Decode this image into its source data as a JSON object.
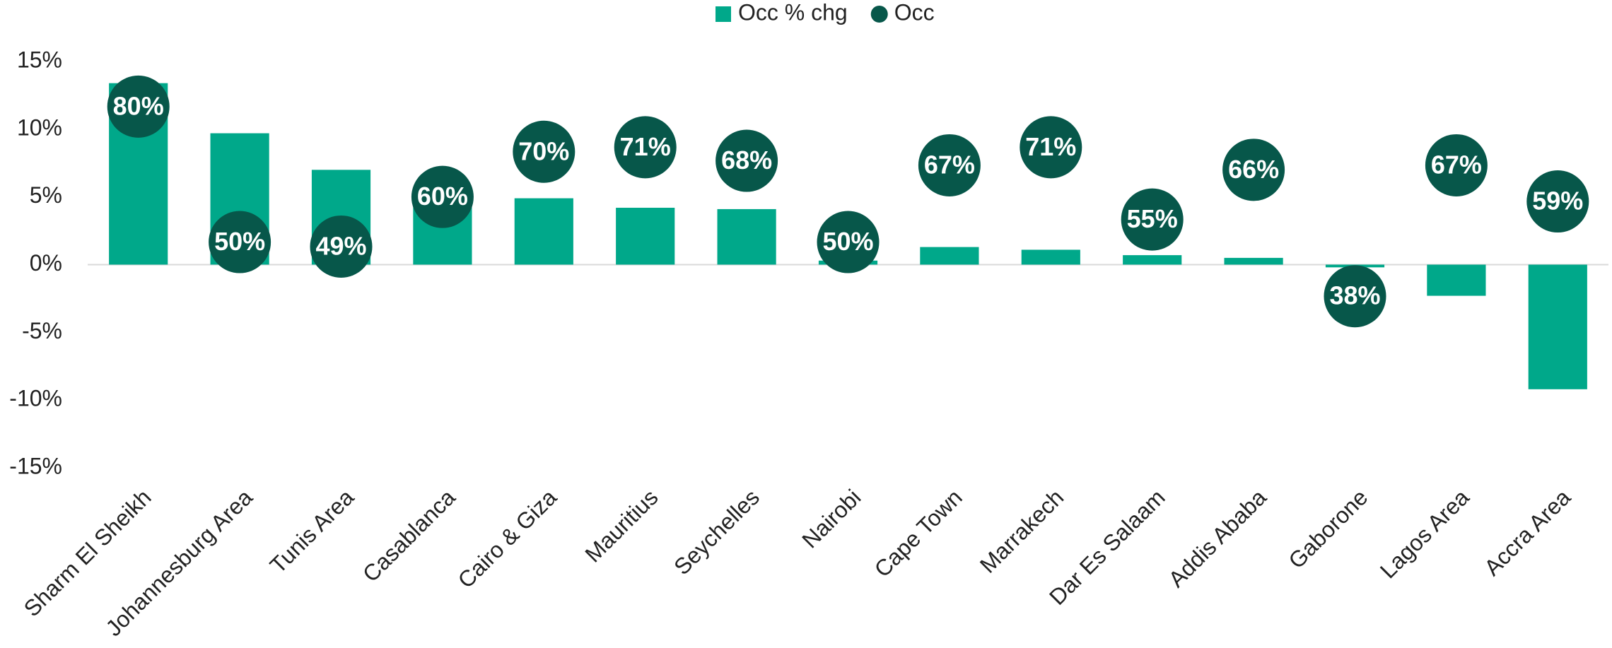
{
  "chart_data": {
    "type": "bar",
    "categories": [
      "Sharm El Sheikh",
      "Johannesburg Area",
      "Tunis Area",
      "Casablanca",
      "Cairo & Giza",
      "Mauritius",
      "Seychelles",
      "Nairobi",
      "Cape Town",
      "Marrakech",
      "Dar Es Salaam",
      "Addis Ababa",
      "Gaborone",
      "Lagos Area",
      "Accra Area"
    ],
    "series": [
      {
        "name": "Occ % chg",
        "type": "bar",
        "color": "#00a88a",
        "values": [
          13.4,
          9.7,
          7.0,
          5.0,
          4.9,
          4.2,
          4.1,
          0.3,
          1.3,
          1.1,
          0.7,
          0.5,
          -0.2,
          -2.3,
          -9.2
        ]
      },
      {
        "name": "Occ",
        "type": "scatter",
        "axis": "y2",
        "color": "#07574a",
        "values": [
          80,
          50,
          49,
          60,
          70,
          71,
          68,
          50,
          67,
          71,
          55,
          66,
          38,
          67,
          59
        ],
        "value_labels": [
          "80%",
          "50%",
          "49%",
          "60%",
          "70%",
          "71%",
          "68%",
          "50%",
          "67%",
          "71%",
          "55%",
          "66%",
          "38%",
          "67%",
          "59%"
        ]
      }
    ],
    "ylim": [
      -15,
      15
    ],
    "yticks": [
      {
        "value": 15,
        "label": "15%"
      },
      {
        "value": 10,
        "label": "10%"
      },
      {
        "value": 5,
        "label": "5%"
      },
      {
        "value": 0,
        "label": "0%"
      },
      {
        "value": -5,
        "label": "-5%"
      },
      {
        "value": -10,
        "label": "-10%"
      },
      {
        "value": -15,
        "label": "-15%"
      }
    ],
    "y2lim": [
      0,
      90
    ],
    "grid": false,
    "legend": "top"
  }
}
